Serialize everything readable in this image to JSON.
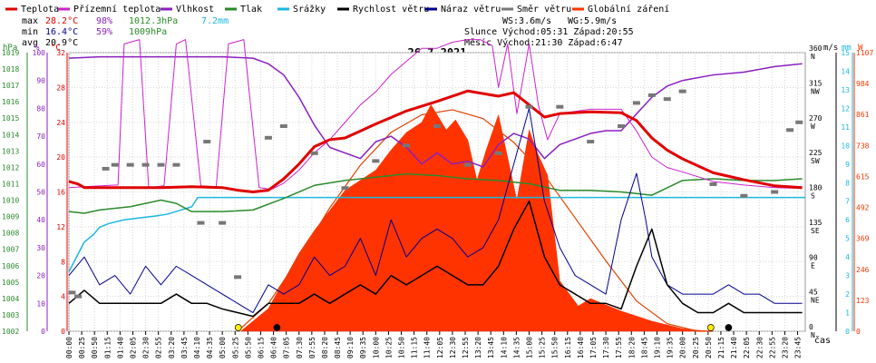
{
  "chart_data": {
    "type": "line",
    "title": "26.7.2021",
    "xlabel": "čas",
    "legend": [
      {
        "label": "Teplota",
        "color": "#e00000"
      },
      {
        "label": "Přízemní teplota",
        "color": "#cc22cc"
      },
      {
        "label": "Vlhkost",
        "color": "#8a1fc0"
      },
      {
        "label": "Tlak",
        "color": "#2a8a2a"
      },
      {
        "label": "Srážky",
        "color": "#1ab8e0"
      },
      {
        "label": "Rychlost větru",
        "color": "#000000"
      },
      {
        "label": "Náraz větru",
        "color": "#000090"
      },
      {
        "label": "Směr větru",
        "color": "#777777"
      },
      {
        "label": "Globální záření",
        "color": "#ff3300"
      }
    ],
    "stats": {
      "max_label": "max",
      "max_temp": "28.2°C",
      "max_hum": "98%",
      "max_press": "1012.3hPa",
      "rain": "7.2mm",
      "min_label": "min",
      "min_temp": "16.4°C",
      "min_hum": "59%",
      "min_press": "1009hPa",
      "avg_label": "avg",
      "avg_temp": "20.9°C",
      "ws": "WS:3.6m/s",
      "wg": "WG:5.9m/s",
      "sun": "Slunce Východ:05:31  Západ:20:55",
      "moon": "Měsíc  Východ:21:30  Západ:6:47"
    },
    "axes": {
      "hpa": {
        "unit": "hPa",
        "min": 1002,
        "max": 1019,
        "step": 1,
        "color": "#2a8a2a"
      },
      "pct": {
        "unit": "%",
        "min": 0,
        "max": 100,
        "step": 10,
        "color": "#8a1fc0"
      },
      "temp": {
        "unit": "°C",
        "min": 0,
        "max": 32,
        "step": 4,
        "color": "#e00000"
      },
      "ms": {
        "unit": "m/s",
        "min": 0,
        "max": 15,
        "color": "#000000"
      },
      "mm": {
        "unit": "mm",
        "min": 0,
        "max": 15,
        "step": 1,
        "color": "#1ab8e0"
      },
      "w": {
        "unit": "W",
        "min": 0,
        "max": 1107,
        "ticks": [
          0,
          123,
          246,
          369,
          492,
          615,
          738,
          861,
          984,
          1107
        ],
        "color": "#ff3300"
      },
      "dir": {
        "min": 0,
        "max": 360,
        "ticks": [
          {
            "v": 0,
            "num": "0",
            "lab": "N"
          },
          {
            "v": 45,
            "num": "45",
            "lab": "NE"
          },
          {
            "v": 90,
            "num": "90",
            "lab": "E"
          },
          {
            "v": 135,
            "num": "135",
            "lab": "SE"
          },
          {
            "v": 180,
            "num": "180",
            "lab": "S"
          },
          {
            "v": 225,
            "num": "225",
            "lab": "SW"
          },
          {
            "v": 270,
            "num": "270",
            "lab": "W"
          },
          {
            "v": 315,
            "num": "315",
            "lab": "NW"
          },
          {
            "v": 360,
            "num": "360",
            "lab": "N"
          }
        ]
      }
    },
    "x_ticks": [
      "00:00",
      "00:25",
      "00:50",
      "01:15",
      "01:40",
      "02:05",
      "02:30",
      "02:55",
      "03:20",
      "03:45",
      "04:10",
      "04:35",
      "05:00",
      "05:25",
      "05:50",
      "06:15",
      "06:40",
      "07:05",
      "07:30",
      "07:55",
      "08:20",
      "08:45",
      "09:10",
      "09:35",
      "10:00",
      "10:25",
      "10:50",
      "11:15",
      "11:40",
      "12:05",
      "12:30",
      "12:55",
      "13:20",
      "13:45",
      "14:10",
      "14:35",
      "15:00",
      "15:25",
      "15:50",
      "16:15",
      "16:40",
      "17:05",
      "17:30",
      "17:55",
      "18:20",
      "18:45",
      "19:10",
      "19:35",
      "20:00",
      "20:25",
      "20:50",
      "21:15",
      "21:40",
      "22:05",
      "22:30",
      "22:55",
      "23:20",
      "23:45"
    ],
    "series": {
      "temperature": {
        "axis": "temp",
        "x": [
          0,
          0.3,
          0.5,
          2,
          3,
          4,
          5,
          5.5,
          6,
          6.5,
          7,
          7.5,
          8,
          8.5,
          9,
          9.5,
          10,
          11,
          12,
          13,
          13.5,
          14,
          14.5,
          15,
          15.5,
          16,
          17,
          18,
          18.5,
          19,
          19.5,
          20,
          20.5,
          21,
          21.5,
          22,
          23,
          23.9
        ],
        "y": [
          17.2,
          16.9,
          16.5,
          16.5,
          16.5,
          16.6,
          16.5,
          16.2,
          16.0,
          16.2,
          17.5,
          19.2,
          21.2,
          22.0,
          22.2,
          23,
          23.8,
          25.3,
          26.4,
          27.6,
          27.3,
          27.0,
          27.4,
          26,
          24.6,
          25,
          25.2,
          25.1,
          24.2,
          22.2,
          20.8,
          19.8,
          19.0,
          18.2,
          17.8,
          17.4,
          16.7,
          16.5
        ]
      },
      "humidity": {
        "axis": "pct",
        "x": [
          0,
          1,
          2,
          3,
          4,
          5,
          6,
          6.5,
          7,
          7.5,
          8,
          8.5,
          9,
          9.5,
          10,
          10.5,
          11,
          11.5,
          12,
          12.5,
          13,
          13.5,
          14,
          14.5,
          15,
          15.5,
          16,
          16.5,
          17,
          17.5,
          18,
          18.5,
          19,
          19.5,
          20,
          21,
          22,
          23,
          23.9
        ],
        "y": [
          98,
          98.5,
          98.5,
          98.5,
          98.5,
          98.5,
          98,
          96,
          92,
          84,
          74,
          66,
          64,
          62,
          68,
          70,
          66,
          60,
          64,
          60,
          61,
          59,
          67,
          71,
          69,
          62,
          67,
          69,
          71,
          72,
          72,
          78,
          84,
          88,
          90,
          92,
          93,
          95,
          96
        ]
      },
      "pressure": {
        "axis": "hpa",
        "x": [
          0,
          0.5,
          1,
          2,
          3,
          3.5,
          4,
          5,
          6,
          7,
          8,
          9,
          10,
          11,
          12,
          13,
          14,
          15,
          16,
          17,
          18,
          19,
          20,
          21,
          22,
          23,
          23.9
        ],
        "y": [
          1009.3,
          1009.2,
          1009.4,
          1009.6,
          1010.0,
          1009.8,
          1009.3,
          1009.3,
          1009.4,
          1010.1,
          1010.9,
          1011.2,
          1011.4,
          1011.6,
          1011.5,
          1011.3,
          1011.2,
          1011.0,
          1010.6,
          1010.6,
          1010.5,
          1010.3,
          1011.2,
          1011.3,
          1011.2,
          1011.2,
          1011.3
        ]
      },
      "rain": {
        "axis": "mm",
        "x": [
          0,
          0.5,
          0.8,
          1,
          1.3,
          1.8,
          2.3,
          2.8,
          3.2,
          3.6,
          4.0,
          4.2,
          4.5,
          5,
          24
        ],
        "y": [
          3.2,
          4.8,
          5.2,
          5.6,
          5.8,
          6.0,
          6.1,
          6.2,
          6.3,
          6.5,
          6.7,
          7.2,
          7.2,
          7.2,
          7.2
        ]
      },
      "radiation": {
        "axis": "w",
        "x": [
          5.6,
          6,
          6.5,
          7,
          7.5,
          8,
          8.5,
          9,
          9.5,
          10,
          10.5,
          11,
          11.5,
          11.8,
          12,
          12.3,
          12.6,
          13,
          13.3,
          13.6,
          14,
          14.3,
          14.6,
          15,
          15.3,
          15.6,
          16,
          16.3,
          16.6,
          17,
          17.4,
          18,
          18.5,
          19,
          19.5,
          20,
          20.5,
          21
        ],
        "y": [
          0,
          40,
          90,
          200,
          310,
          400,
          480,
          560,
          600,
          640,
          720,
          790,
          830,
          900,
          860,
          800,
          840,
          760,
          600,
          720,
          860,
          690,
          520,
          800,
          700,
          620,
          200,
          150,
          100,
          130,
          110,
          80,
          60,
          40,
          25,
          10,
          4,
          0
        ]
      },
      "radiation_clear": {
        "axis": "w",
        "x": [
          5.5,
          6.5,
          7.5,
          8.5,
          9.5,
          10.5,
          11.5,
          12.5,
          13.5,
          14.5,
          15.5,
          16.5,
          17.5,
          18.5,
          19.5,
          20.5,
          21
        ],
        "y": [
          0,
          110,
          290,
          490,
          660,
          790,
          860,
          880,
          845,
          750,
          620,
          450,
          280,
          120,
          30,
          0,
          0
        ]
      },
      "wind_speed": {
        "axis": "ms",
        "x": [
          0,
          0.5,
          1,
          1.5,
          2,
          2.5,
          3,
          3.5,
          4,
          4.5,
          5,
          5.5,
          6,
          6.5,
          7,
          7.5,
          8,
          8.5,
          9,
          9.5,
          10,
          10.5,
          11,
          11.5,
          12,
          12.5,
          13,
          13.5,
          14,
          14.5,
          15,
          15.5,
          16,
          16.5,
          17,
          17.5,
          18,
          18.5,
          19,
          19.5,
          20,
          20.5,
          21,
          21.5,
          22,
          22.5,
          23,
          23.9
        ],
        "y": [
          1.5,
          2.2,
          1.5,
          1.5,
          1.5,
          1.5,
          1.5,
          2,
          1.5,
          1.5,
          1.2,
          1,
          0.8,
          1.5,
          1.5,
          1.5,
          2,
          1.5,
          2,
          2.5,
          2,
          3,
          2.5,
          3,
          3.5,
          3,
          2.5,
          2.5,
          3.5,
          5.5,
          7,
          4,
          2.5,
          2,
          1.5,
          1.5,
          1.2,
          3.5,
          5.5,
          2.5,
          1.5,
          1,
          1,
          1.5,
          1,
          1,
          1,
          1
        ]
      },
      "wind_gust": {
        "axis": "ms",
        "x": [
          0,
          0.5,
          1,
          1.5,
          2,
          2.5,
          3,
          3.5,
          4,
          4.5,
          5,
          5.5,
          6,
          6.5,
          7,
          7.5,
          8,
          8.5,
          9,
          9.5,
          10,
          10.5,
          11,
          11.5,
          12,
          12.5,
          13,
          13.5,
          14,
          14.5,
          15,
          15.2,
          15.5,
          16,
          16.5,
          17,
          17.5,
          18,
          18.5,
          18.8,
          19,
          19.5,
          20,
          20.5,
          21,
          21.5,
          22,
          22.5,
          23,
          23.9
        ],
        "y": [
          3,
          4,
          2.5,
          3,
          2,
          3.5,
          2.5,
          3.5,
          3,
          2.5,
          2,
          1.5,
          1,
          2.5,
          2,
          2.5,
          4,
          3,
          3.5,
          5,
          3,
          6,
          4,
          5,
          5.5,
          5,
          4,
          4.5,
          6,
          9,
          12,
          10,
          7,
          4.5,
          3,
          2.5,
          2,
          6,
          8.5,
          6,
          4,
          2.5,
          2,
          2,
          2,
          2.5,
          2,
          2,
          1.5,
          1.5
        ]
      },
      "wind_dir": {
        "axis": "dir",
        "x": [
          0.1,
          0.3,
          1.2,
          1.5,
          2,
          2.5,
          3,
          3.5,
          4.3,
          4.5,
          5,
          5.5,
          6.5,
          7,
          8,
          9,
          10,
          11,
          12,
          13,
          14,
          15,
          16,
          17,
          18,
          18.5,
          19,
          19.5,
          20,
          21,
          22,
          23,
          23.5,
          23.8
        ],
        "y": [
          50,
          45,
          210,
          215,
          215,
          215,
          215,
          215,
          140,
          245,
          140,
          70,
          250,
          265,
          230,
          185,
          220,
          240,
          265,
          215,
          230,
          290,
          290,
          245,
          265,
          295,
          305,
          300,
          310,
          190,
          175,
          180,
          260,
          270
        ]
      },
      "ground_temp": {
        "axis": "temp",
        "x": [
          0,
          0.5,
          1.6,
          1.8,
          2.3,
          2.6,
          3.1,
          3.5,
          3.8,
          4.3,
          4.8,
          5.2,
          5.7,
          6.2,
          6.6,
          7.0,
          7.5,
          8,
          8.5,
          9,
          9.5,
          10,
          10.5,
          11,
          11.5,
          12,
          12.5,
          13,
          13.4,
          13.8,
          14,
          14.3,
          14.6,
          15,
          15.3,
          15.6,
          16,
          17,
          18,
          18.5,
          19,
          19.5,
          20,
          21,
          22,
          23,
          23.9
        ],
        "y": [
          16.5,
          16.6,
          16.8,
          33,
          33.5,
          16.5,
          16.7,
          33,
          33.5,
          16.7,
          16.6,
          33,
          33.5,
          16.5,
          16.3,
          17,
          18.5,
          20.5,
          22,
          24,
          26,
          27.5,
          29.5,
          31,
          32.5,
          32.5,
          33.2,
          33.5,
          33.5,
          32.8,
          28,
          33,
          25,
          33,
          26,
          22,
          25,
          25.5,
          25.5,
          23,
          20,
          18.8,
          18.3,
          17.2,
          16.8,
          16.5,
          16.4
        ]
      }
    }
  }
}
